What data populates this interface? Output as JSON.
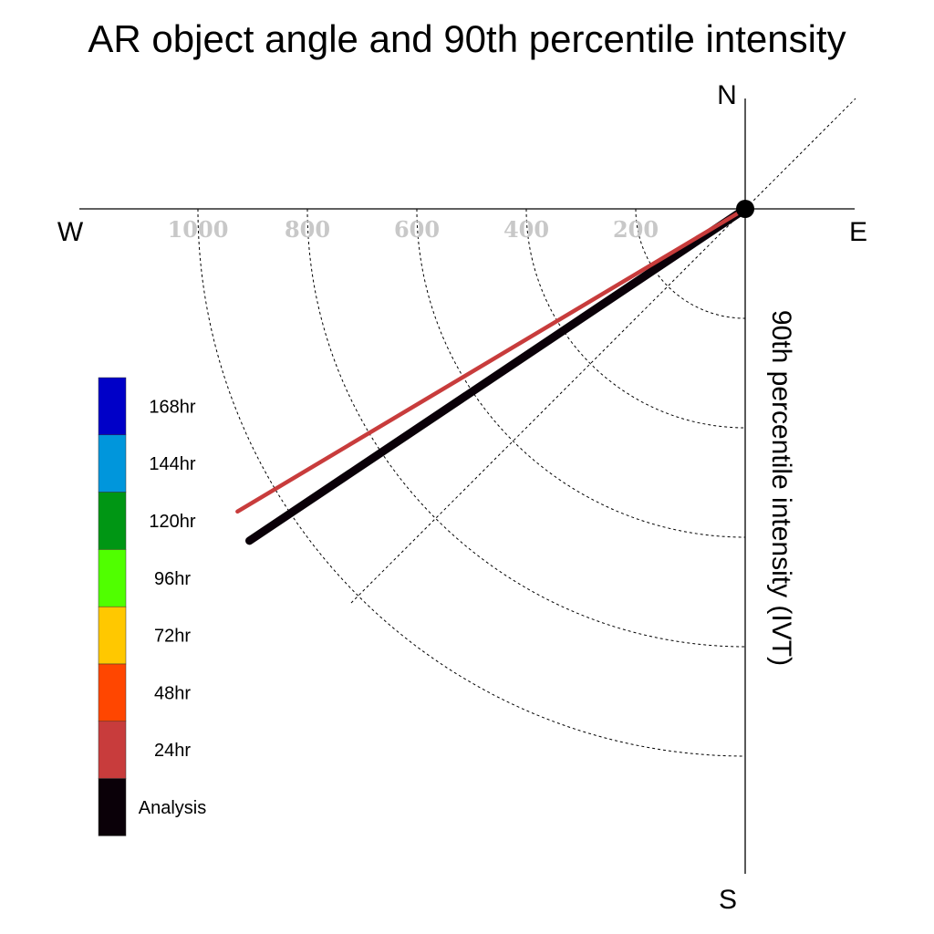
{
  "chart_data": {
    "type": "polar-vector",
    "title": "AR object angle and 90th percentile intensity",
    "ylabel": "90th percentile intensity (IVT)",
    "compass": {
      "north": "N",
      "south": "S",
      "east": "E",
      "west": "W"
    },
    "radial_ticks": [
      "200",
      "400",
      "600",
      "800",
      "1000"
    ],
    "radial_range": [
      0,
      1000
    ],
    "grid": true,
    "legend": [
      {
        "label": "168hr",
        "color": "#0000c8"
      },
      {
        "label": "144hr",
        "color": "#0096dc"
      },
      {
        "label": "120hr",
        "color": "#009614"
      },
      {
        "label": "96hr",
        "color": "#50ff00"
      },
      {
        "label": "72hr",
        "color": "#ffc800"
      },
      {
        "label": "48hr",
        "color": "#ff4600"
      },
      {
        "label": "24hr",
        "color": "#c83c3c"
      },
      {
        "label": "Analysis",
        "color": "#0a0008"
      }
    ],
    "series": [
      {
        "name": "Analysis",
        "angle_deg_below_west": 33.8,
        "intensity": 1090,
        "color": "#0a0008"
      },
      {
        "name": "24hr",
        "angle_deg_below_west": 30.8,
        "intensity": 1080,
        "color": "#c83c3c"
      }
    ]
  }
}
